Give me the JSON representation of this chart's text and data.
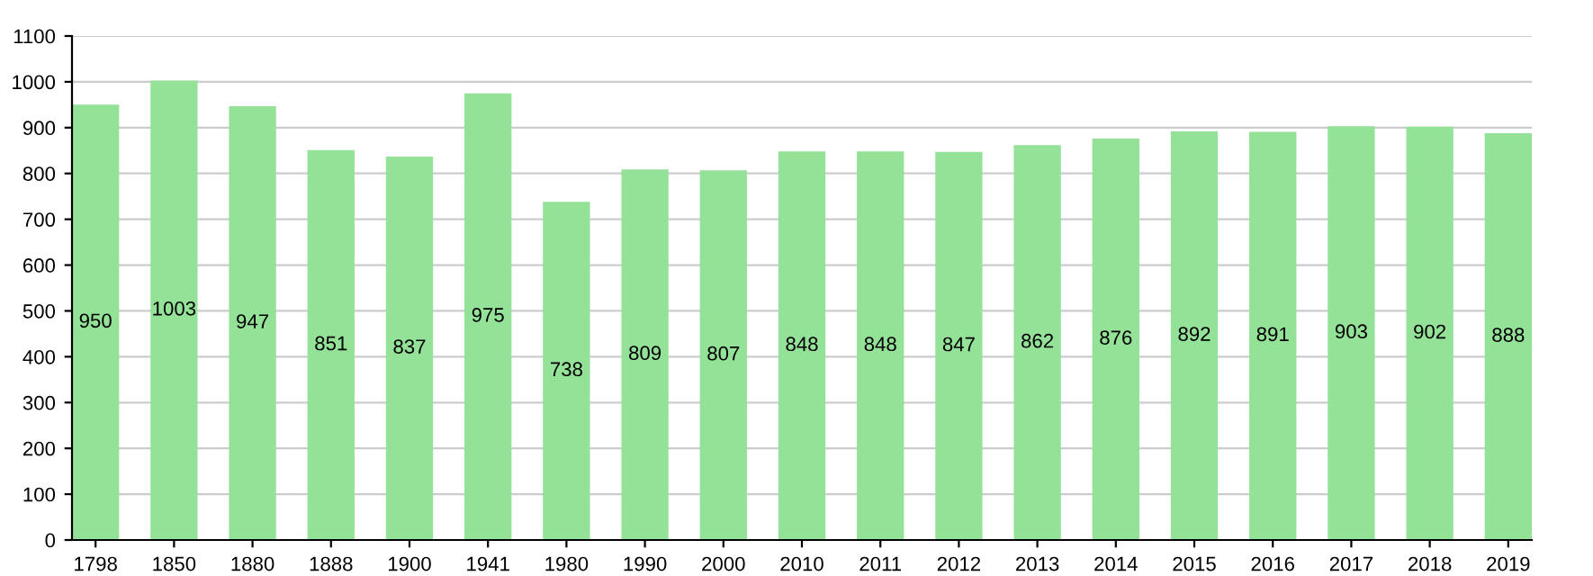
{
  "chart_data": {
    "type": "bar",
    "categories": [
      "1798",
      "1850",
      "1880",
      "1888",
      "1900",
      "1941",
      "1980",
      "1990",
      "2000",
      "2010",
      "2011",
      "2012",
      "2013",
      "2014",
      "2015",
      "2016",
      "2017",
      "2018",
      "2019"
    ],
    "values": [
      950,
      1003,
      947,
      851,
      837,
      975,
      738,
      809,
      807,
      848,
      848,
      847,
      862,
      876,
      892,
      891,
      903,
      902,
      888
    ],
    "color": "#94e297",
    "ylim": [
      0,
      1100
    ],
    "yticks": [
      0,
      100,
      200,
      300,
      400,
      500,
      600,
      700,
      800,
      900,
      1000,
      1100
    ],
    "grid": "y",
    "data_labels": true
  }
}
